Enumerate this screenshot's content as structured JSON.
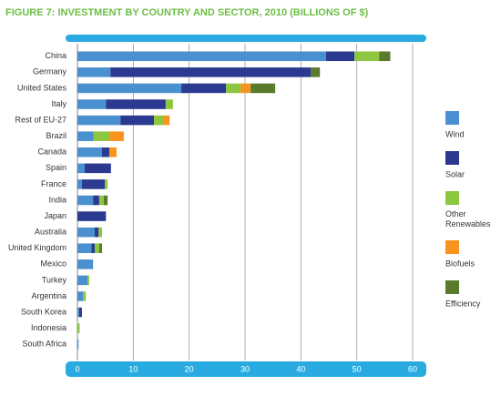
{
  "chart_data": {
    "type": "stacked-bar-horizontal",
    "title": "FIGURE 7: INVESTMENT BY COUNTRY AND SECTOR, 2010 (BILLIONS OF $)",
    "categories": [
      "China",
      "Germany",
      "United States",
      "Italy",
      "Rest of EU-27",
      "Brazil",
      "Canada",
      "Spain",
      "France",
      "India",
      "Japan",
      "Australia",
      "United Kingdom",
      "Mexico",
      "Turkey",
      "Argentina",
      "South Korea",
      "Indonesia",
      "South Africa"
    ],
    "series": [
      {
        "name": "Wind",
        "color": "#4a8fd0",
        "values": [
          44.5,
          5.9,
          18.6,
          5.1,
          7.7,
          2.9,
          4.4,
          1.3,
          0.8,
          2.8,
          0,
          3.1,
          2.5,
          2.8,
          1.8,
          1.0,
          0.3,
          0,
          0.2
        ]
      },
      {
        "name": "Solar",
        "color": "#2b3990",
        "values": [
          5.1,
          35.9,
          8.0,
          10.7,
          6.0,
          0,
          1.3,
          4.7,
          4.1,
          1.1,
          5.1,
          0.7,
          0.6,
          0,
          0,
          0,
          0.5,
          0,
          0
        ]
      },
      {
        "name": "Other Renewables",
        "color": "#8dc63f",
        "values": [
          4.4,
          0,
          2.6,
          1.3,
          1.8,
          2.8,
          0,
          0,
          0.5,
          0.8,
          0,
          0.6,
          0.8,
          0,
          0.3,
          0.5,
          0,
          0.4,
          0
        ]
      },
      {
        "name": "Biofuels",
        "color": "#f7941d",
        "values": [
          0,
          0,
          1.8,
          0,
          1.0,
          2.6,
          1.3,
          0,
          0,
          0,
          0,
          0,
          0,
          0,
          0,
          0,
          0,
          0,
          0
        ]
      },
      {
        "name": "Efficiency",
        "color": "#5a7a2e",
        "values": [
          2.0,
          1.6,
          4.4,
          0,
          0,
          0,
          0,
          0,
          0,
          0.7,
          0,
          0,
          0.5,
          0,
          0,
          0,
          0,
          0,
          0
        ]
      }
    ],
    "xlim": [
      0,
      60
    ],
    "xticks": [
      0,
      10,
      20,
      30,
      40,
      50,
      60
    ],
    "grid": true,
    "legend": "right",
    "band_color": "#29abe2"
  }
}
